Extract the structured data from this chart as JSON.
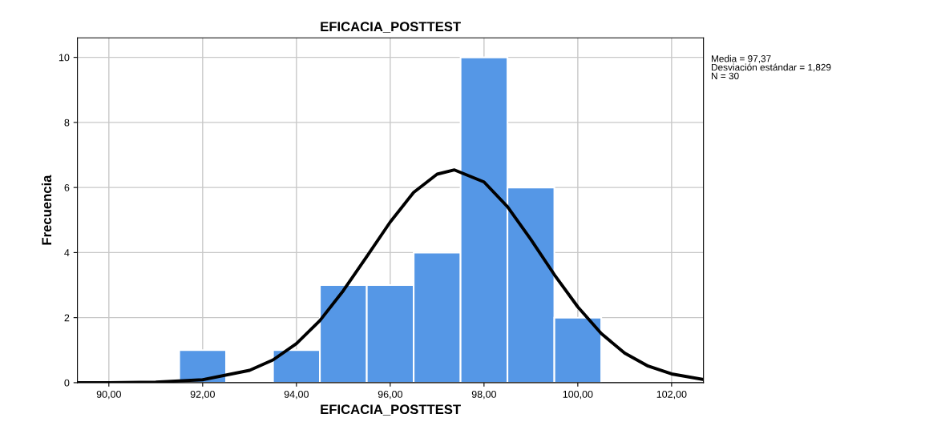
{
  "chart_data": {
    "type": "histogram",
    "title": "EFICACIA_POSTTEST",
    "xlabel": "EFICACIA_POSTTEST",
    "ylabel": "Frecuencia",
    "series": [
      {
        "bins": [
          91.5,
          92.5,
          93.5,
          94.5,
          95.5,
          96.5,
          97.5,
          98.5,
          99.5,
          100.5
        ],
        "values": [
          1,
          0,
          1,
          3,
          3,
          4,
          10,
          6,
          2
        ],
        "color": "#5597e6"
      },
      {
        "type": "line",
        "color": "#000000",
        "x": [
          89.33,
          90,
          91,
          92,
          93,
          93.5,
          94,
          94.5,
          95,
          95.5,
          96,
          96.5,
          97,
          97.37,
          98,
          98.5,
          99,
          99.5,
          100,
          100.5,
          101,
          101.5,
          102,
          102.68
        ],
        "values": [
          0.0,
          0.0,
          0.02,
          0.09,
          0.38,
          0.7,
          1.2,
          1.91,
          2.83,
          3.88,
          4.94,
          5.85,
          6.41,
          6.54,
          6.17,
          5.41,
          4.4,
          3.32,
          2.33,
          1.51,
          0.91,
          0.51,
          0.27,
          0.1
        ]
      }
    ],
    "xlim": [
      89.33,
      102.68
    ],
    "ylim": [
      0,
      10.6
    ],
    "xticks": [
      {
        "value": 90,
        "label": "90,00"
      },
      {
        "value": 92,
        "label": "92,00"
      },
      {
        "value": 94,
        "label": "94,00"
      },
      {
        "value": 96,
        "label": "96,00"
      },
      {
        "value": 98,
        "label": "98,00"
      },
      {
        "value": 100,
        "label": "100,00"
      },
      {
        "value": 102,
        "label": "102,00"
      }
    ],
    "yticks": [
      0,
      2,
      4,
      6,
      8,
      10
    ],
    "grid": true,
    "annotations": [
      "Media = 97,37",
      "Desviación estándar = 1,829",
      "N = 30"
    ]
  }
}
